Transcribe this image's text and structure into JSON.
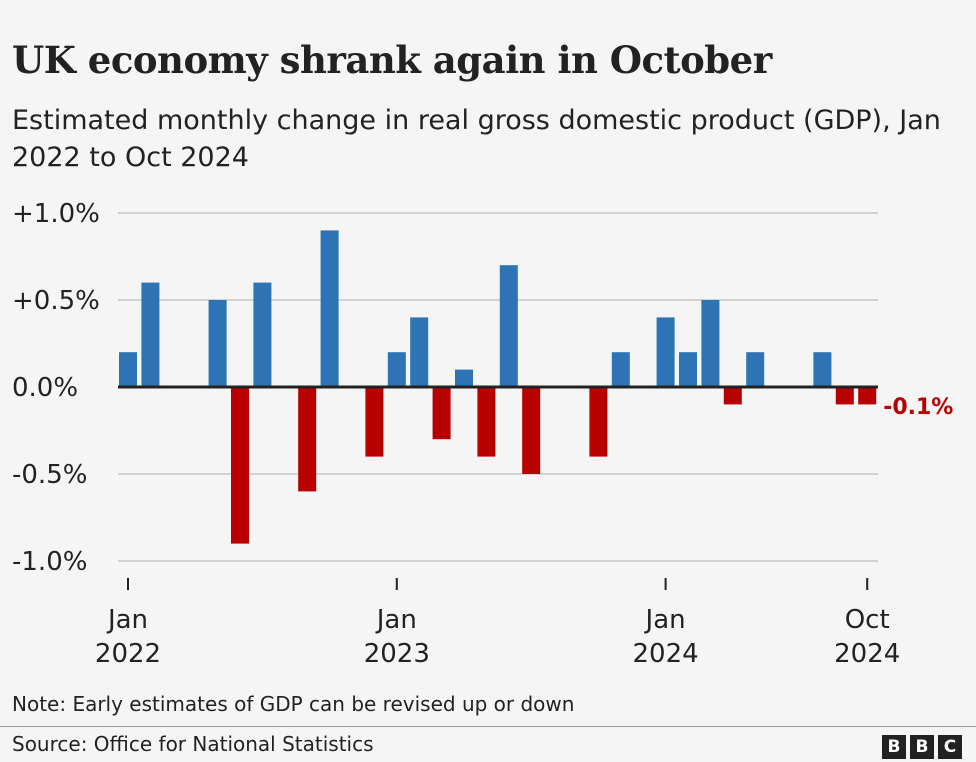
{
  "title": "UK economy shrank again in October",
  "subtitle": "Estimated monthly change in real gross domestic product (GDP), Jan 2022 to Oct 2024",
  "note": "Note: Early estimates of GDP can be revised up or down",
  "source": "Source: Office for National Statistics",
  "logo": [
    "B",
    "B",
    "C"
  ],
  "colors": {
    "positive": "#2e74b5",
    "negative": "#b80000",
    "background": "#f5f5f5"
  },
  "chart_data": {
    "type": "bar",
    "ylim": [
      -1.0,
      1.0
    ],
    "yticks": [
      {
        "v": 1.0,
        "label": "+1.0%"
      },
      {
        "v": 0.5,
        "label": "+0.5%"
      },
      {
        "v": 0,
        "label": "0.0%"
      },
      {
        "v": -0.5,
        "label": "-0.5%"
      },
      {
        "v": -1.0,
        "label": "-1.0%"
      }
    ],
    "grid": true,
    "categories": [
      "Jan 2022",
      "Feb 2022",
      "Mar 2022",
      "Apr 2022",
      "May 2022",
      "Jun 2022",
      "Jul 2022",
      "Aug 2022",
      "Sep 2022",
      "Oct 2022",
      "Nov 2022",
      "Dec 2022",
      "Jan 2023",
      "Feb 2023",
      "Mar 2023",
      "Apr 2023",
      "May 2023",
      "Jun 2023",
      "Jul 2023",
      "Aug 2023",
      "Sep 2023",
      "Oct 2023",
      "Nov 2023",
      "Dec 2023",
      "Jan 2024",
      "Feb 2024",
      "Mar 2024",
      "Apr 2024",
      "May 2024",
      "Jun 2024",
      "Jul 2024",
      "Aug 2024",
      "Sep 2024",
      "Oct 2024"
    ],
    "values": [
      0.2,
      0.6,
      0,
      0,
      0.5,
      -0.9,
      0.6,
      0,
      -0.6,
      0.9,
      0,
      -0.4,
      0.2,
      0.4,
      -0.3,
      0.1,
      -0.4,
      0.7,
      -0.5,
      0,
      0,
      -0.4,
      0.2,
      0,
      0.4,
      0.2,
      0.5,
      -0.1,
      0.2,
      0,
      0,
      0.2,
      -0.1,
      -0.1
    ],
    "xticks": [
      {
        "index": 0,
        "line1": "Jan",
        "line2": "2022"
      },
      {
        "index": 12,
        "line1": "Jan",
        "line2": "2023"
      },
      {
        "index": 24,
        "line1": "Jan",
        "line2": "2024"
      },
      {
        "index": 33,
        "line1": "Oct",
        "line2": "2024"
      }
    ],
    "annotation": {
      "index": 33,
      "label": "-0.1%"
    }
  }
}
